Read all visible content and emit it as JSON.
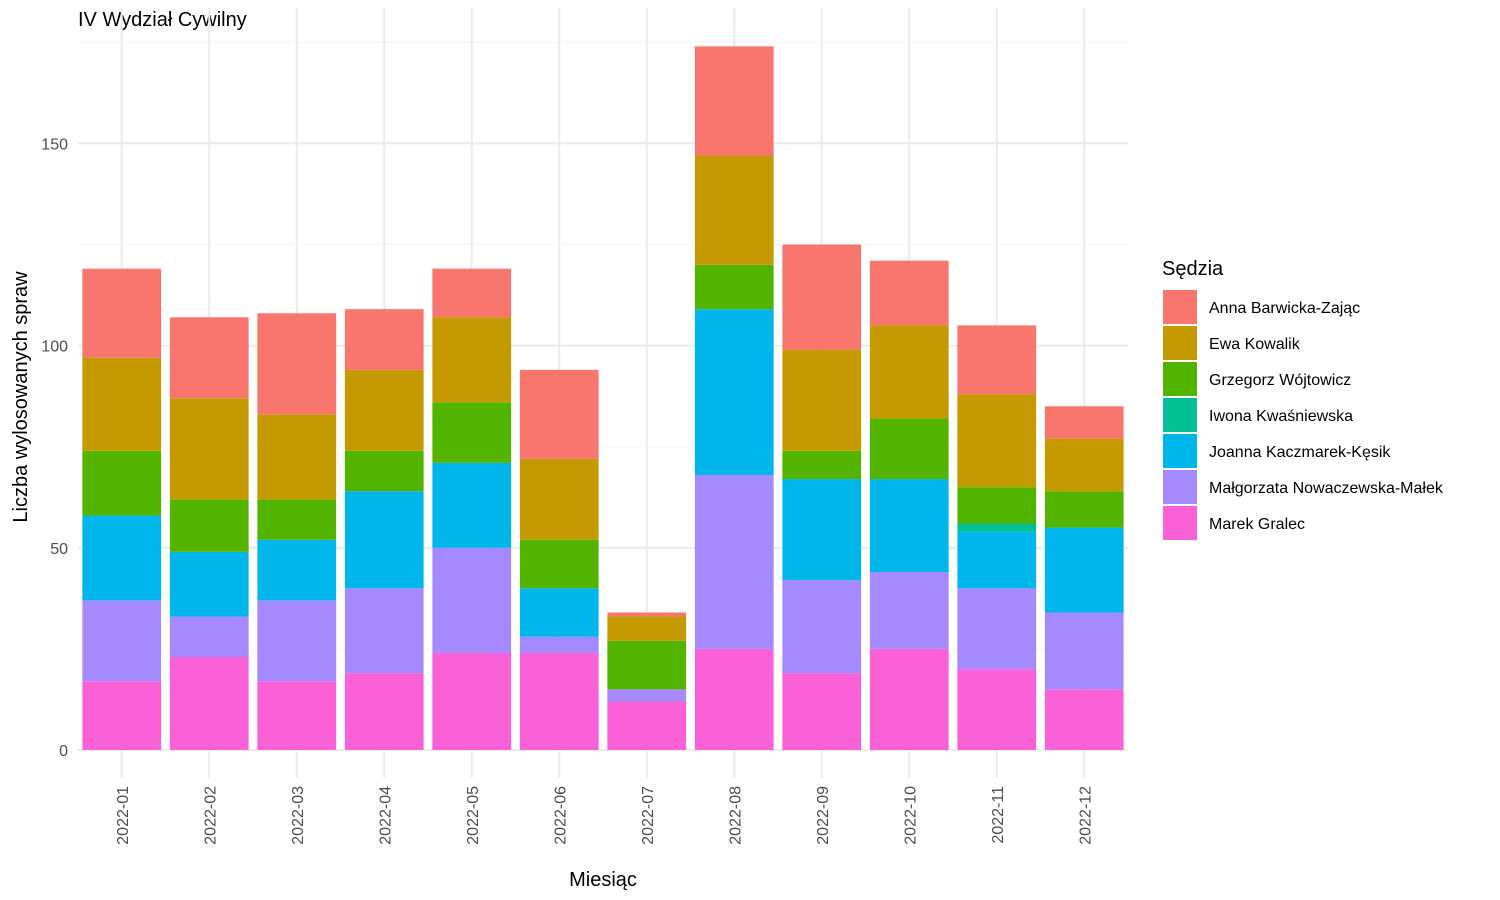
{
  "chart_data": {
    "type": "bar",
    "stacked": true,
    "title": "IV Wydział Cywilny",
    "xlabel": "Miesiąc",
    "ylabel": "Liczba wylosowanych spraw",
    "ylim": [
      0,
      180
    ],
    "yticks": [
      0,
      50,
      100,
      150
    ],
    "grid": true,
    "legend_position": "right",
    "legend_title": "Sędzia",
    "categories": [
      "2022-01",
      "2022-02",
      "2022-03",
      "2022-04",
      "2022-05",
      "2022-06",
      "2022-07",
      "2022-08",
      "2022-09",
      "2022-10",
      "2022-11",
      "2022-12"
    ],
    "series": [
      {
        "name": "Anna Barwicka-Zając",
        "color": "#F8766D",
        "values": [
          22,
          20,
          25,
          15,
          12,
          22,
          1,
          27,
          26,
          16,
          17,
          8
        ]
      },
      {
        "name": "Ewa Kowalik",
        "color": "#C49A00",
        "values": [
          23,
          25,
          21,
          20,
          21,
          20,
          6,
          27,
          25,
          23,
          23,
          13
        ]
      },
      {
        "name": "Grzegorz Wójtowicz",
        "color": "#53B400",
        "values": [
          16,
          13,
          10,
          10,
          15,
          12,
          12,
          11,
          7,
          15,
          9,
          9
        ]
      },
      {
        "name": "Iwona Kwaśniewska",
        "color": "#00C094",
        "values": [
          0,
          0,
          0,
          0,
          0,
          0,
          0,
          0,
          0,
          0,
          2,
          0
        ]
      },
      {
        "name": "Joanna Kaczmarek-Kęsik",
        "color": "#00B6EB",
        "values": [
          21,
          16,
          15,
          24,
          21,
          12,
          0,
          41,
          25,
          23,
          14,
          21
        ]
      },
      {
        "name": "Małgorzata Nowaczewska-Małek",
        "color": "#A58AFF",
        "values": [
          20,
          10,
          20,
          21,
          26,
          4,
          3,
          43,
          23,
          19,
          20,
          19
        ]
      },
      {
        "name": "Marek Gralec",
        "color": "#FB61D7",
        "values": [
          17,
          23,
          17,
          19,
          24,
          24,
          12,
          25,
          19,
          25,
          20,
          15
        ]
      }
    ]
  }
}
